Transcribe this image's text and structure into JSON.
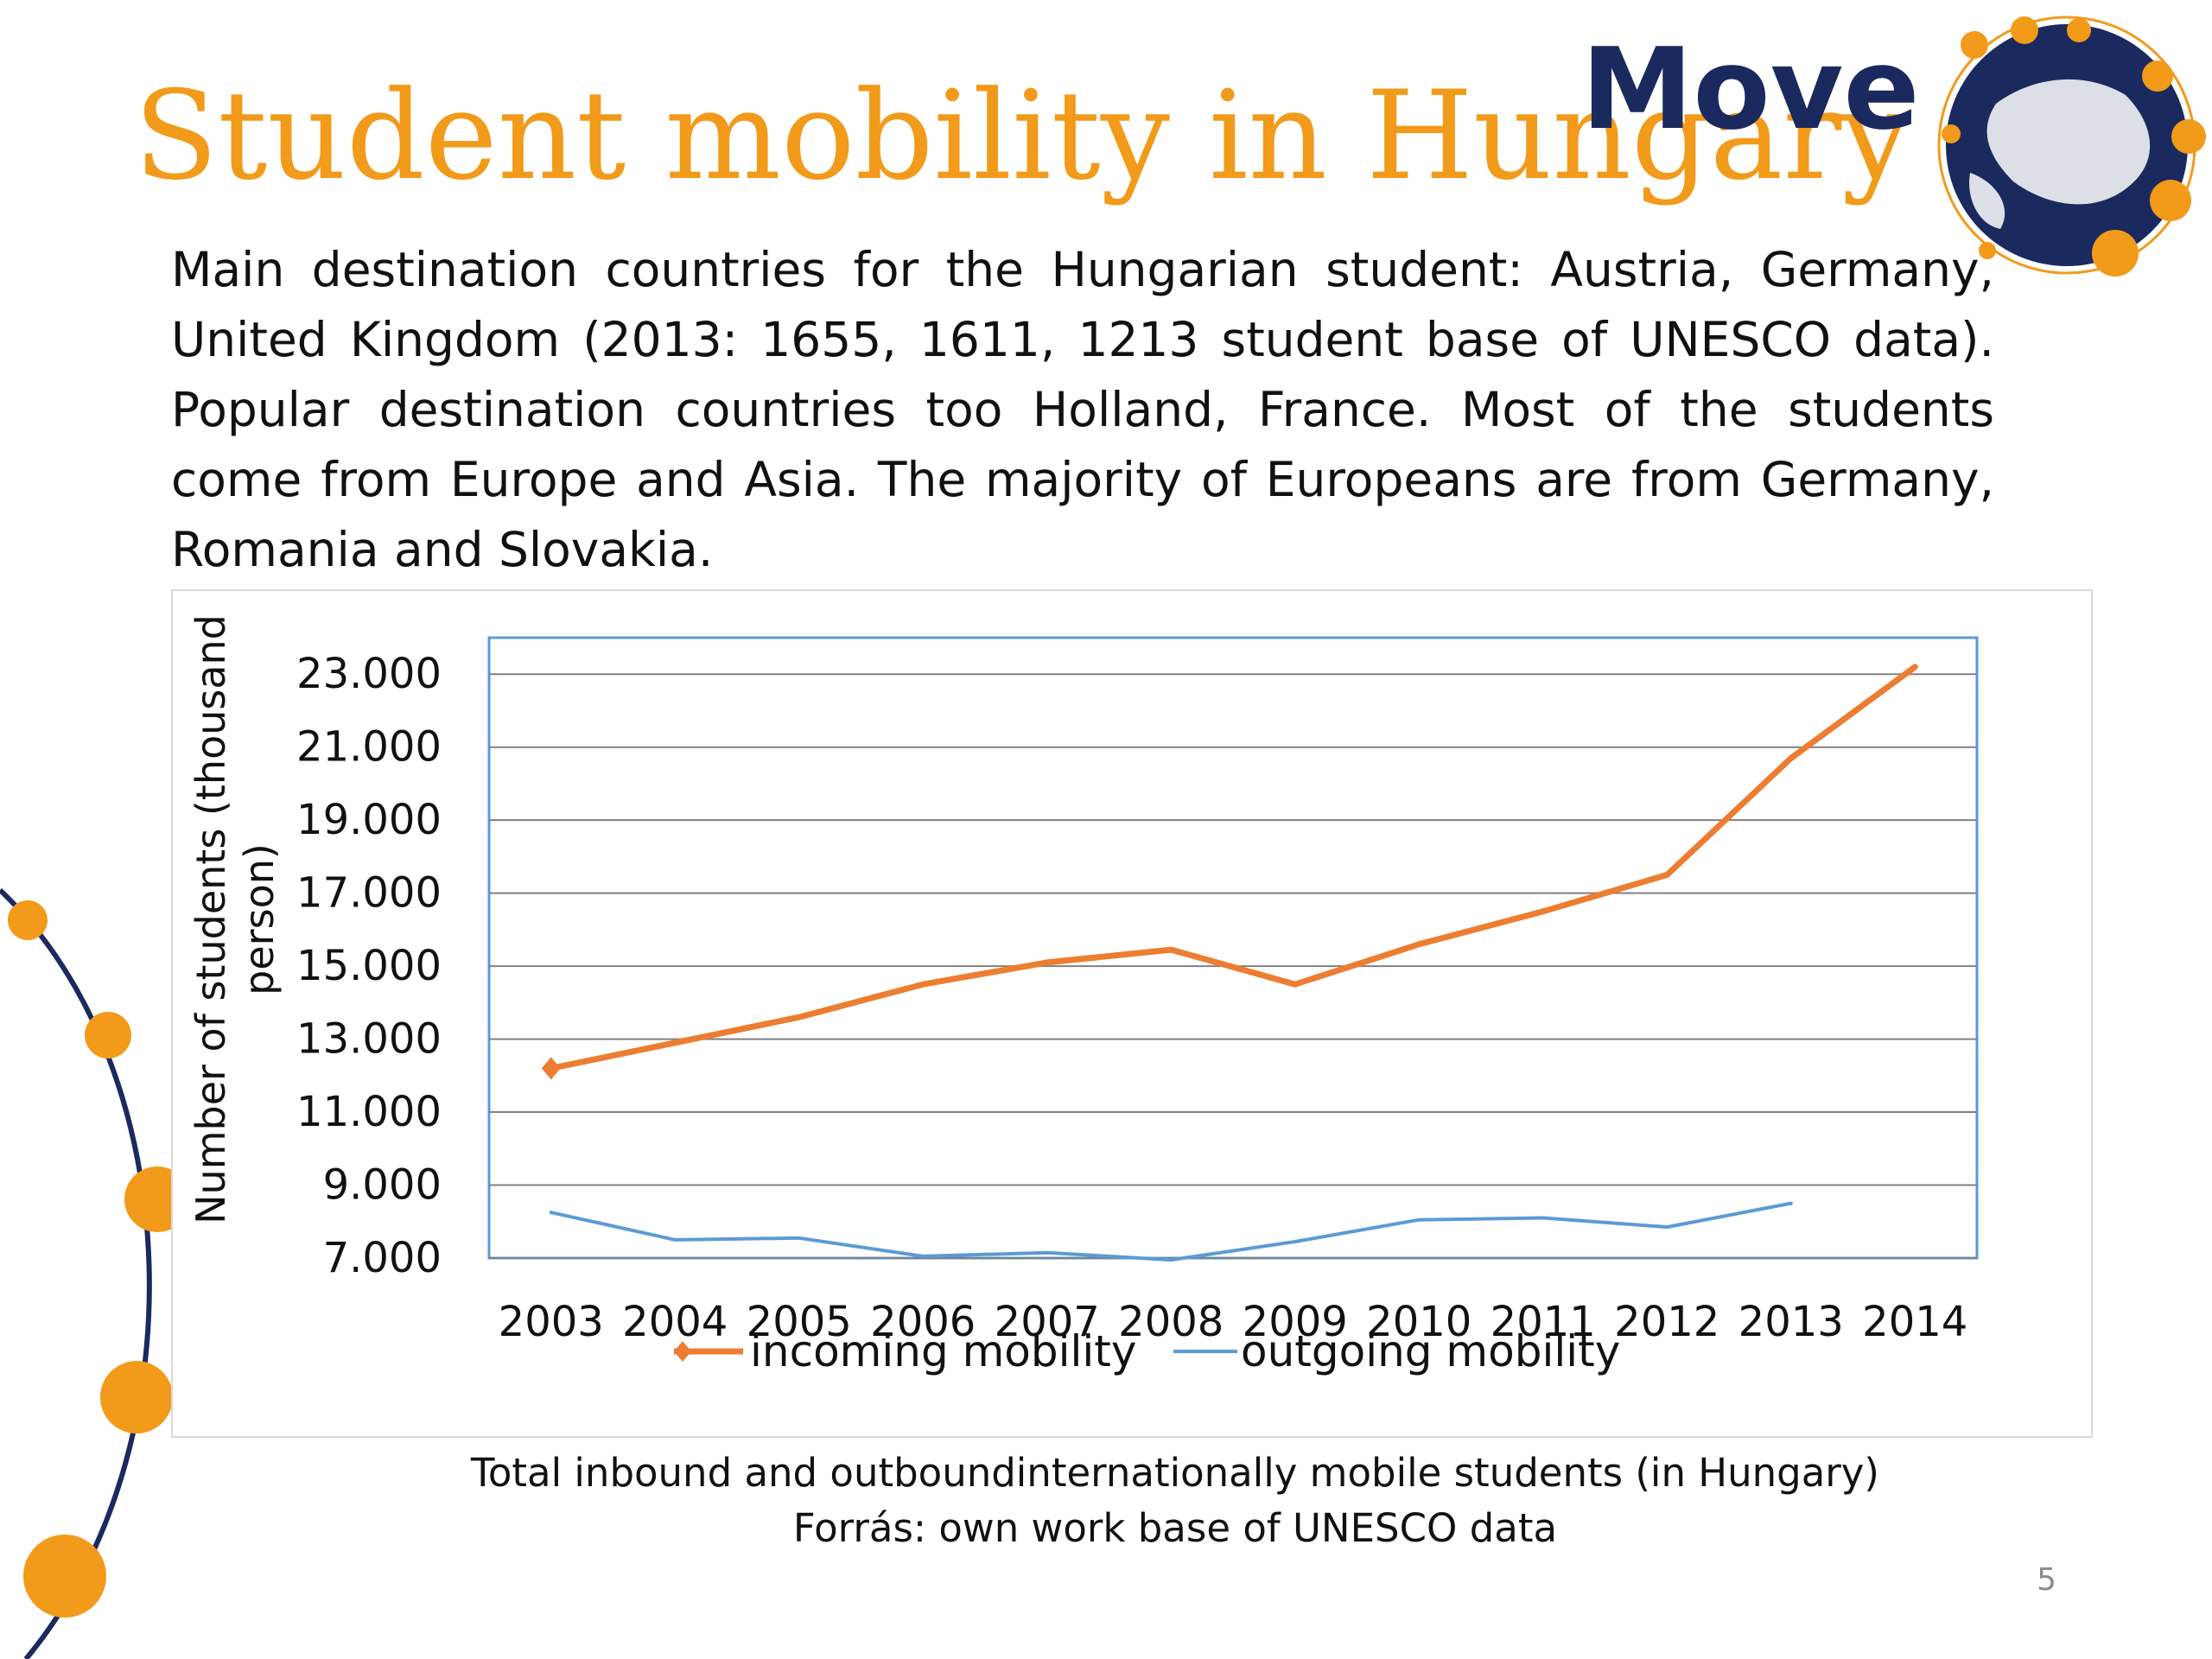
{
  "slide": {
    "title": "Student mobility in Hungary",
    "body": "Main destination countries for the Hungarian student: Austria, Germany, United Kingdom (2013: 1655, 1611, 1213 student base of UNESCO data). Popular destination countries too Holland, France. Most of the students come from Europe and Asia. The majority of Europeans are from Germany, Romania and Slovakia.",
    "caption": "Total inbound and outboundinternationally mobile students (in Hungary)",
    "source": "Forrás: own  work base of UNESCO data",
    "slide_number": "5"
  },
  "logo": {
    "text": "Move",
    "colors": {
      "text": "#1b2a5e",
      "globe": "#1b2a5e",
      "dots": "#f29a1a"
    }
  },
  "colors": {
    "title": "#f29a1a",
    "accent_dots": "#f29a1a",
    "arc": "#1b2a5e"
  },
  "chart_data": {
    "type": "line",
    "ylabel": "Number of students (thousand person)",
    "xlabel": "",
    "categories": [
      "2003",
      "2004",
      "2005",
      "2006",
      "2007",
      "2008",
      "2009",
      "2010",
      "2011",
      "2012",
      "2013",
      "2014"
    ],
    "yticks": [
      "7.000",
      "9.000",
      "11.000",
      "13.000",
      "15.000",
      "17.000",
      "19.000",
      "21.000",
      "23.000"
    ],
    "ylim": [
      7000,
      24000
    ],
    "grid": true,
    "legend_position": "bottom",
    "series": [
      {
        "name": "incoming mobility",
        "color": "#ed7d31",
        "marker": "diamond",
        "values": [
          12200,
          12900,
          13600,
          14500,
          15100,
          15450,
          14500,
          15600,
          16500,
          17500,
          20700,
          23200
        ]
      },
      {
        "name": "outgoing mobility",
        "color": "#5b9bd5",
        "marker": "none",
        "values": [
          8250,
          7500,
          7550,
          7050,
          7150,
          6950,
          7450,
          8050,
          8100,
          7850,
          8500,
          null
        ]
      }
    ]
  }
}
